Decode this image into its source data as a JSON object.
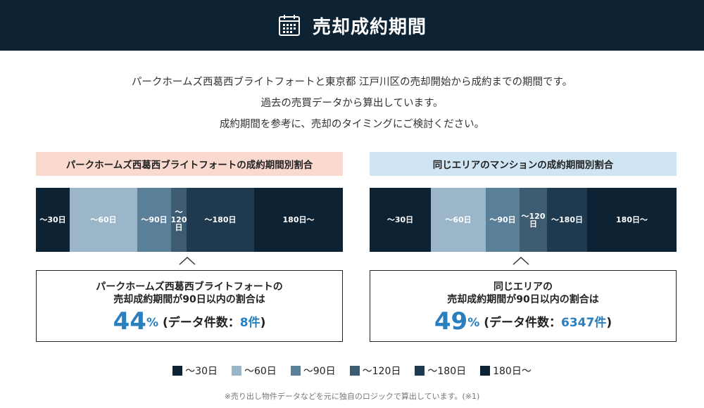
{
  "header": {
    "title": "売却成約期間",
    "icon": "calendar-icon"
  },
  "intro": {
    "lines": [
      "パークホームズ西葛西ブライトフォートと東京都 江戸川区の売却開始から成約までの期間です。",
      "過去の売買データから算出しています。",
      "成約期間を参考に、売却のタイミングにご検討ください。"
    ]
  },
  "colors": {
    "header_bg": "#0d2233",
    "accent_blue": "#2a7fbf",
    "left_label_bg": "#fad9cf",
    "right_label_bg": "#cfe5f3"
  },
  "left": {
    "label": "パークホームズ西葛西ブライトフォートの成約期間別割合",
    "result_line1": "パークホームズ西葛西ブライトフォートの",
    "result_line2": "売却成約期間が90日以内の割合は",
    "percent": "44",
    "percent_sign": "%",
    "count_prefix": "(データ件数：",
    "count": "8件",
    "count_suffix": ")"
  },
  "right": {
    "label": "同じエリアのマンションの成約期間別割合",
    "result_line1": "同じエリアの",
    "result_line2": "売却成約期間が90日以内の割合は",
    "percent": "49",
    "percent_sign": "%",
    "count_prefix": "(データ件数：",
    "count": "6347件",
    "count_suffix": ")"
  },
  "chart_data": [
    {
      "type": "bar",
      "orientation": "horizontal-stacked",
      "categories": [
        "〜30日",
        "〜60日",
        "〜90日",
        "〜120日",
        "〜180日",
        "180日〜"
      ],
      "segment_labels": [
        "〜30日",
        "〜60日",
        "〜90日",
        "〜\n120\n日",
        "〜180日",
        "180日〜"
      ],
      "values": [
        11,
        22,
        11,
        5,
        22,
        29
      ],
      "unit": "%",
      "colors": [
        "#0d2233",
        "#9ab6c8",
        "#5a7f99",
        "#3d5c72",
        "#1f3a4e",
        "#0d2233"
      ]
    },
    {
      "type": "bar",
      "orientation": "horizontal-stacked",
      "categories": [
        "〜30日",
        "〜60日",
        "〜90日",
        "〜120日",
        "〜180日",
        "180日〜"
      ],
      "segment_labels": [
        "〜30日",
        "〜60日",
        "〜90日",
        "〜120\n日",
        "〜180日",
        "180日〜"
      ],
      "values": [
        20,
        18,
        11,
        9,
        13,
        29
      ],
      "unit": "%",
      "colors": [
        "#0d2233",
        "#9ab6c8",
        "#5a7f99",
        "#3d5c72",
        "#1f3a4e",
        "#0d2233"
      ]
    }
  ],
  "legend": {
    "items": [
      {
        "label": "〜30日",
        "color": "#0d2233"
      },
      {
        "label": "〜60日",
        "color": "#9ab6c8"
      },
      {
        "label": "〜90日",
        "color": "#5a7f99"
      },
      {
        "label": "〜120日",
        "color": "#3d5c72"
      },
      {
        "label": "〜180日",
        "color": "#1f3a4e"
      },
      {
        "label": "180日〜",
        "color": "#0d2233"
      }
    ]
  },
  "footnote": "※売り出し物件データなどを元に独自のロジックで算出しています。(※1)"
}
